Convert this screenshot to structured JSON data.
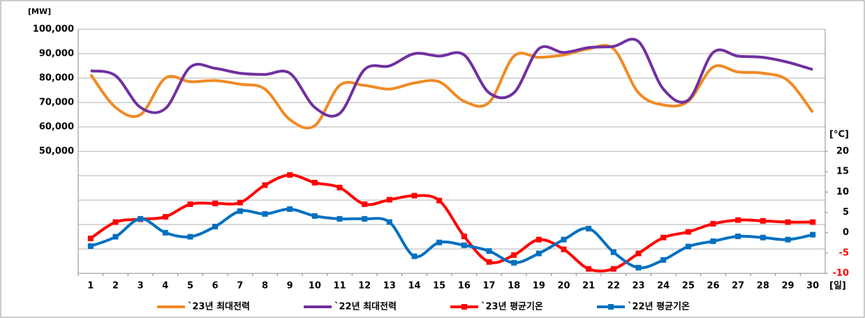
{
  "chart_data": {
    "type": "line",
    "y_unit": "[MW]",
    "y2_unit": "[°C]",
    "x_unit": "[일]",
    "categories": [
      "1",
      "2",
      "3",
      "4",
      "5",
      "6",
      "7",
      "8",
      "9",
      "10",
      "11",
      "12",
      "13",
      "14",
      "15",
      "16",
      "17",
      "18",
      "19",
      "20",
      "21",
      "22",
      "23",
      "24",
      "25",
      "26",
      "27",
      "28",
      "29",
      "30"
    ],
    "series": [
      {
        "name": "`23년 최대전력",
        "color": "#f08a24",
        "axis": "y",
        "marker": false,
        "values": [
          81500,
          68000,
          65000,
          80000,
          78500,
          79000,
          77500,
          75500,
          63000,
          60500,
          77000,
          77000,
          75500,
          78000,
          78500,
          70500,
          70000,
          89000,
          88500,
          89500,
          92000,
          92000,
          74000,
          69000,
          70500,
          84500,
          82500,
          82000,
          79000,
          66000
        ]
      },
      {
        "name": "`22년 최대전력",
        "color": "#7030a0",
        "axis": "y",
        "marker": false,
        "values": [
          83000,
          81000,
          68000,
          67500,
          84500,
          84000,
          82000,
          81500,
          82000,
          68000,
          65500,
          83500,
          85000,
          90000,
          89000,
          89500,
          74000,
          74000,
          92000,
          90500,
          92500,
          93000,
          95000,
          75500,
          71000,
          90500,
          89000,
          88500,
          86500,
          83500
        ]
      },
      {
        "name": "`23년 평균기온",
        "color": "#ff0000",
        "axis": "y2",
        "marker": true,
        "values": [
          -1.4,
          2.6,
          3.3,
          3.9,
          7.0,
          7.2,
          7.4,
          11.7,
          14.2,
          12.3,
          11.1,
          7.0,
          8.1,
          9.1,
          7.9,
          -0.9,
          -7.2,
          -5.5,
          -1.7,
          -4.1,
          -8.9,
          -8.9,
          -5.1,
          -1.2,
          0.2,
          2.2,
          3.1,
          2.9,
          2.6,
          2.6
        ]
      },
      {
        "name": "`22년 평균기온",
        "color": "#0070c0",
        "axis": "y2",
        "marker": true,
        "values": [
          -3.3,
          -1.0,
          3.4,
          0,
          -1.0,
          1.5,
          5.3,
          4.6,
          5.8,
          4.1,
          3.4,
          3.4,
          2.6,
          -5.8,
          -2.4,
          -3.1,
          -4.5,
          -7.4,
          -5.1,
          -1.7,
          1.0,
          -4.8,
          -8.6,
          -6.7,
          -3.4,
          -2.1,
          -0.9,
          -1.2,
          -1.7,
          -0.5
        ]
      }
    ],
    "ylim": [
      0,
      100000
    ],
    "yticks": [
      {
        "value": 50000,
        "label": "50,000"
      },
      {
        "value": 60000,
        "label": "60,000"
      },
      {
        "value": 70000,
        "label": "70,000"
      },
      {
        "value": 80000,
        "label": "80,000"
      },
      {
        "value": 90000,
        "label": "90,000"
      },
      {
        "value": 100000,
        "label": "100,000"
      }
    ],
    "ygrid": [
      0,
      10000,
      20000,
      30000,
      40000
    ],
    "y2lim": [
      -10,
      50
    ],
    "y2ticks": [
      -10,
      -5,
      0,
      5,
      10,
      15,
      20
    ],
    "negative_tick_color": "#ff0000",
    "grid": true,
    "legend": "bottom"
  }
}
